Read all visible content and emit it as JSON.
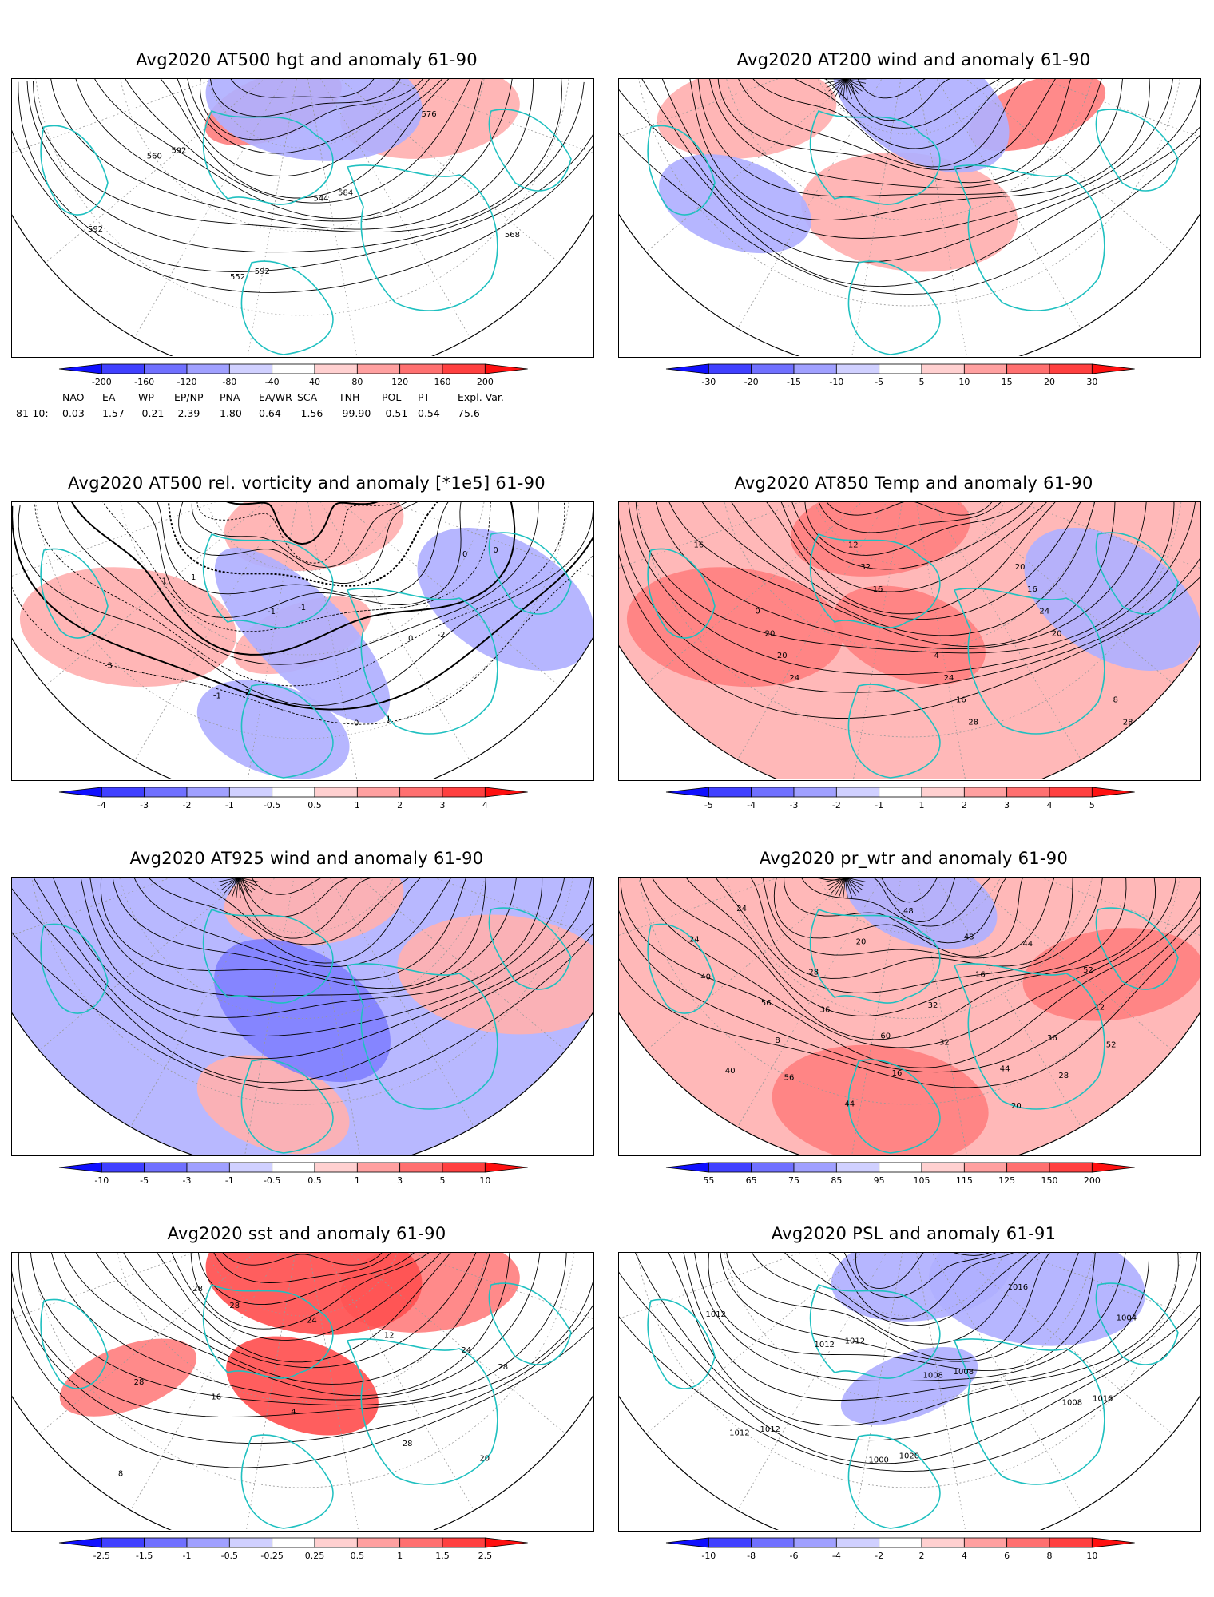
{
  "chart_data": [
    {
      "type": "heatmap",
      "title": "Avg2020 AT500 hgt and anomaly 61-90",
      "contour_labels": [
        "544",
        "552",
        "560",
        "568",
        "576",
        "584",
        "592",
        "592",
        "592"
      ],
      "colorbar": [
        "-200",
        "-160",
        "-120",
        "-80",
        "-40",
        "40",
        "80",
        "120",
        "160",
        "200"
      ],
      "anomaly_patches": [
        {
          "sign": "pos",
          "strength": 2,
          "where": "north-center"
        },
        {
          "sign": "pos",
          "strength": 1,
          "where": "northeast"
        },
        {
          "sign": "neg",
          "strength": 1,
          "where": "north"
        }
      ]
    },
    {
      "type": "heatmap",
      "title": "Avg2020 AT200 wind and anomaly 61-90",
      "contour_labels": [],
      "colorbar": [
        "-30",
        "-20",
        "-15",
        "-10",
        "-5",
        "5",
        "10",
        "15",
        "20",
        "30"
      ],
      "anomaly_patches": [
        {
          "sign": "pos",
          "strength": 2,
          "where": "northeast"
        },
        {
          "sign": "pos",
          "strength": 1,
          "where": "northwest"
        },
        {
          "sign": "pos",
          "strength": 1,
          "where": "center"
        },
        {
          "sign": "neg",
          "strength": 1,
          "where": "west"
        },
        {
          "sign": "neg",
          "strength": 1,
          "where": "north"
        }
      ]
    },
    {
      "type": "heatmap",
      "title": "Avg2020 AT500 rel. vorticity and anomaly [*1e5] 61-90",
      "contour_labels": [
        "-1",
        "1",
        "-2",
        "2",
        "0",
        "-1",
        "-3",
        "0",
        "-1",
        "0",
        "-1",
        "0",
        "-1"
      ],
      "colorbar": [
        "-4",
        "-3",
        "-2",
        "-1",
        "-0.5",
        "0.5",
        "1",
        "2",
        "3",
        "4"
      ],
      "anomaly_patches": [
        {
          "sign": "pos",
          "strength": 1,
          "where": "center"
        },
        {
          "sign": "pos",
          "strength": 1,
          "where": "north"
        },
        {
          "sign": "pos",
          "strength": 1,
          "where": "west"
        },
        {
          "sign": "neg",
          "strength": 1,
          "where": "south"
        },
        {
          "sign": "neg",
          "strength": 1,
          "where": "east"
        },
        {
          "sign": "neg",
          "strength": 1,
          "where": "center"
        }
      ]
    },
    {
      "type": "heatmap",
      "title": "Avg2020 AT850 Temp and anomaly 61-90",
      "contour_labels": [
        "20",
        "0",
        "4",
        "8",
        "12",
        "16",
        "20",
        "24",
        "28",
        "32",
        "24",
        "20",
        "16",
        "16",
        "16",
        "20",
        "24",
        "28"
      ],
      "colorbar": [
        "-5",
        "-4",
        "-3",
        "-2",
        "-1",
        "1",
        "2",
        "3",
        "4",
        "5"
      ],
      "anomaly_patches": [
        {
          "sign": "pos",
          "strength": 1,
          "where": "all"
        },
        {
          "sign": "pos",
          "strength": 2,
          "where": "north-center"
        },
        {
          "sign": "pos",
          "strength": 2,
          "where": "west"
        },
        {
          "sign": "pos",
          "strength": 2,
          "where": "center"
        },
        {
          "sign": "neg",
          "strength": 1,
          "where": "east"
        }
      ]
    },
    {
      "type": "heatmap",
      "title": "Avg2020 AT925 wind and anomaly 61-90",
      "contour_labels": [],
      "colorbar": [
        "-10",
        "-5",
        "-3",
        "-1",
        "-0.5",
        "0.5",
        "1",
        "3",
        "5",
        "10"
      ],
      "anomaly_patches": [
        {
          "sign": "neg",
          "strength": 1,
          "where": "all"
        },
        {
          "sign": "pos",
          "strength": 1,
          "where": "north"
        },
        {
          "sign": "pos",
          "strength": 1,
          "where": "east"
        },
        {
          "sign": "pos",
          "strength": 1,
          "where": "south"
        },
        {
          "sign": "neg",
          "strength": 2,
          "where": "center"
        }
      ]
    },
    {
      "type": "heatmap",
      "title": "Avg2020 pr_wtr and anomaly 61-90",
      "contour_labels": [
        "52",
        "56",
        "48",
        "44",
        "40",
        "36",
        "32",
        "28",
        "24",
        "20",
        "16",
        "12",
        "8",
        "16",
        "20",
        "24",
        "28",
        "32",
        "36",
        "40",
        "44",
        "48",
        "52",
        "56",
        "60",
        "44",
        "40"
      ],
      "colorbar": [
        "55",
        "65",
        "75",
        "85",
        "95",
        "105",
        "115",
        "125",
        "150",
        "200"
      ],
      "anomaly_patches": [
        {
          "sign": "pos",
          "strength": 1,
          "where": "all"
        },
        {
          "sign": "pos",
          "strength": 2,
          "where": "east"
        },
        {
          "sign": "pos",
          "strength": 2,
          "where": "south"
        },
        {
          "sign": "neg",
          "strength": 1,
          "where": "north"
        }
      ]
    },
    {
      "type": "heatmap",
      "title": "Avg2020 sst and anomaly 61-90",
      "contour_labels": [
        "28",
        "24",
        "4",
        "8",
        "12",
        "16",
        "20",
        "24",
        "28",
        "28",
        "28",
        "28"
      ],
      "colorbar": [
        "-2.5",
        "-1.5",
        "-1",
        "-0.5",
        "-0.25",
        "0.25",
        "0.5",
        "1",
        "1.5",
        "2.5"
      ],
      "anomaly_patches": [
        {
          "sign": "pos",
          "strength": 2,
          "where": "west"
        },
        {
          "sign": "pos",
          "strength": 2,
          "where": "northeast"
        },
        {
          "sign": "pos",
          "strength": 3,
          "where": "north"
        },
        {
          "sign": "pos",
          "strength": 3,
          "where": "center"
        }
      ]
    },
    {
      "type": "heatmap",
      "title": "Avg2020 PSL and anomaly 61-91",
      "contour_labels": [
        "1012",
        "1016",
        "1020",
        "1012",
        "1008",
        "1012",
        "1016",
        "1012",
        "1008",
        "1000",
        "1004",
        "1008",
        "1012"
      ],
      "colorbar": [
        "-10",
        "-8",
        "-6",
        "-4",
        "-2",
        "2",
        "4",
        "6",
        "8",
        "10"
      ],
      "anomaly_patches": [
        {
          "sign": "neg",
          "strength": 1,
          "where": "center"
        },
        {
          "sign": "neg",
          "strength": 1,
          "where": "north"
        },
        {
          "sign": "neg",
          "strength": 1,
          "where": "northeast"
        }
      ]
    }
  ],
  "teleconnection": {
    "period_label": "81-10:",
    "columns": [
      "NAO",
      "EA",
      "WP",
      "EP/NP",
      "PNA",
      "EA/WR",
      "SCA",
      "TNH",
      "POL",
      "PT",
      "Expl. Var."
    ],
    "values": [
      "0.03",
      "1.57",
      "-0.21",
      "-2.39",
      "1.80",
      "0.64",
      "-1.56",
      "-99.90",
      "-0.51",
      "0.54",
      "75.6"
    ]
  },
  "colors": {
    "land_outline": "#1fc0c0",
    "blue_scale": [
      "#2020ff",
      "#5050ff",
      "#8080ff",
      "#b0b0ff",
      "#d8d8ff"
    ],
    "red_scale": [
      "#ffd8d8",
      "#ffb0b0",
      "#ff8080",
      "#ff5050",
      "#ff2020"
    ]
  }
}
